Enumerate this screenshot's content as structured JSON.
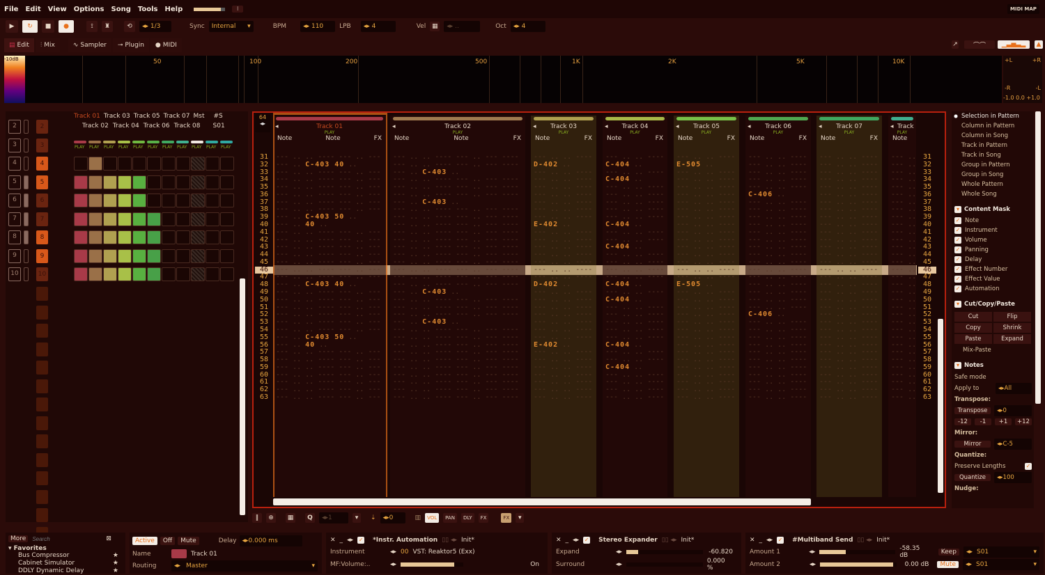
{
  "menu": [
    "File",
    "Edit",
    "View",
    "Options",
    "Song",
    "Tools",
    "Help"
  ],
  "midi_map": "MIDI MAP",
  "transport": {
    "loop_range": "1/3",
    "sync_label": "Sync",
    "sync": "Internal",
    "bpm_label": "BPM",
    "bpm": "110",
    "lpb_label": "LPB",
    "lpb": "4",
    "vel_label": "Vel",
    "vel": "..",
    "oct_label": "Oct",
    "oct": "4"
  },
  "tabs": [
    "Edit",
    "Mix",
    "Sampler",
    "Plugin",
    "MIDI"
  ],
  "spectrum": {
    "db_label": "-10dB",
    "freqs": [
      "50",
      "100",
      "200",
      "500",
      "1K",
      "2K",
      "5K",
      "10K"
    ],
    "scope_labels": [
      "+L",
      "+R",
      "-R",
      "-L"
    ],
    "scope_value": "-1.0 0.0 +1.0"
  },
  "sequencer": {
    "tracks_row1": [
      "Track 01",
      "Track 03",
      "Track 05",
      "Track 07",
      "Mst",
      "#S"
    ],
    "tracks_row2": [
      "Track 02",
      "Track 04",
      "Track 06",
      "Track 08",
      "S01"
    ],
    "patterns": [
      "2",
      "3",
      "4",
      "5",
      "6",
      "7",
      "8",
      "9",
      "10"
    ],
    "play": "PLAY",
    "matrix": [
      "01",
      "11111",
      "11111",
      "111111",
      "111111",
      "111111",
      "111111"
    ],
    "colors": [
      "#a83a48",
      "#9a7048",
      "#b0a050",
      "#a8c048",
      "#58b040",
      "#48a048"
    ]
  },
  "pattern": {
    "lines": "64",
    "play": "PLAY",
    "note_label": "Note",
    "fx_label": "FX",
    "current_row": 46,
    "first_row": 31,
    "last_row": 63,
    "tracks": [
      {
        "name": "Track 01",
        "color": "#a83a48",
        "notes": {
          "32": "C-403 40",
          "39": "C-403 50",
          "40": "      40",
          "48": "C-403 40",
          "55": "C-403 50",
          "56": "      40"
        }
      },
      {
        "name": "Track 02",
        "color": "#a07a50",
        "notes": {
          "33": "C-403",
          "37": "C-403",
          "49": "C-403",
          "53": "C-403"
        }
      },
      {
        "name": "Track 03",
        "color": "#b0a050",
        "notes": {
          "32": "D-402",
          "40": "E-402",
          "48": "D-402",
          "56": "E-402"
        }
      },
      {
        "name": "Track 04",
        "color": "#a8b848",
        "notes": {
          "32": "C-404",
          "34": "C-404",
          "40": "C-404",
          "43": "C-404",
          "48": "C-404",
          "50": "C-404",
          "56": "C-404",
          "59": "C-404"
        }
      },
      {
        "name": "Track 05",
        "color": "#78c048",
        "notes": {
          "32": "E-505",
          "48": "E-505"
        }
      },
      {
        "name": "Track 06",
        "color": "#50a850",
        "notes": {
          "36": "C-406",
          "52": "C-406"
        }
      },
      {
        "name": "Track 07",
        "color": "#40a860",
        "notes": {}
      },
      {
        "name": "Track",
        "color": "#40b090",
        "notes": {}
      }
    ]
  },
  "pattern_toolbar": {
    "quant_value": "1",
    "edit_step": "0",
    "col_buttons": [
      "VOL",
      "PAN",
      "DLY",
      "FX"
    ],
    "fx": "FX"
  },
  "right_panel": {
    "scope": [
      "Selection in Pattern",
      "Column in Pattern",
      "Column in Song",
      "Track in Pattern",
      "Track in Song",
      "Group in Pattern",
      "Group in Song",
      "Whole Pattern",
      "Whole Song"
    ],
    "content_mask_title": "Content Mask",
    "mask": [
      "Note",
      "Instrument",
      "Volume",
      "Panning",
      "Delay",
      "Effect Number",
      "Effect Value",
      "Automation"
    ],
    "ccp_title": "Cut/Copy/Paste",
    "ccp": [
      "Cut",
      "Flip",
      "Copy",
      "Shrink",
      "Paste",
      "Expand"
    ],
    "mix_paste": "Mix-Paste",
    "notes_title": "Notes",
    "safe_mode": "Safe mode",
    "apply_to": "Apply to",
    "apply_value": "All",
    "transpose_h": "Transpose:",
    "transpose": "Transpose",
    "transpose_value": "0",
    "steps": [
      "-12",
      "-1",
      "+1",
      "+12"
    ],
    "mirror_h": "Mirror:",
    "mirror": "Mirror",
    "mirror_value": "C-5",
    "quantize_h": "Quantize:",
    "preserve": "Preserve Lengths",
    "quantize": "Quantize",
    "quantize_value": "100",
    "nudge_h": "Nudge:"
  },
  "dsp_browser": {
    "more": "More",
    "search_placeholder": "Search",
    "favorites": "Favorites",
    "items": [
      "Bus Compressor",
      "Cabinet Simulator",
      "DDLY Dynamic Delay"
    ]
  },
  "track_props": {
    "active": "Active",
    "off": "Off",
    "mute": "Mute",
    "delay_label": "Delay",
    "delay": "0.000 ms",
    "name_label": "Name",
    "name": "Track 01",
    "routing_label": "Routing",
    "routing": "Master",
    "color": "#a83a48"
  },
  "devices": [
    {
      "title": "*Instr. Automation",
      "preset": "Init*",
      "rows": [
        {
          "label": "Instrument",
          "value": "00",
          "extra": "VST: Reaktor5 (Exx)"
        },
        {
          "label": "MF:Volume:..",
          "value": "On",
          "level": 0.85
        }
      ]
    },
    {
      "title": "Stereo Expander",
      "preset": "Init*",
      "rows": [
        {
          "label": "Expand",
          "value": "-60.820",
          "level": 0.15
        },
        {
          "label": "Surround",
          "value": "0.000 %",
          "level": 0.0
        }
      ]
    },
    {
      "title": "#Multiband Send",
      "preset": "Init*",
      "rows": [
        {
          "label": "Amount 1",
          "value": "-58.35 dB",
          "level": 0.35,
          "mode": "Keep",
          "target": "S01"
        },
        {
          "label": "Amount 2",
          "value": "0.00 dB",
          "level": 0.95,
          "mode": "Mute",
          "target": "S01"
        }
      ]
    }
  ]
}
